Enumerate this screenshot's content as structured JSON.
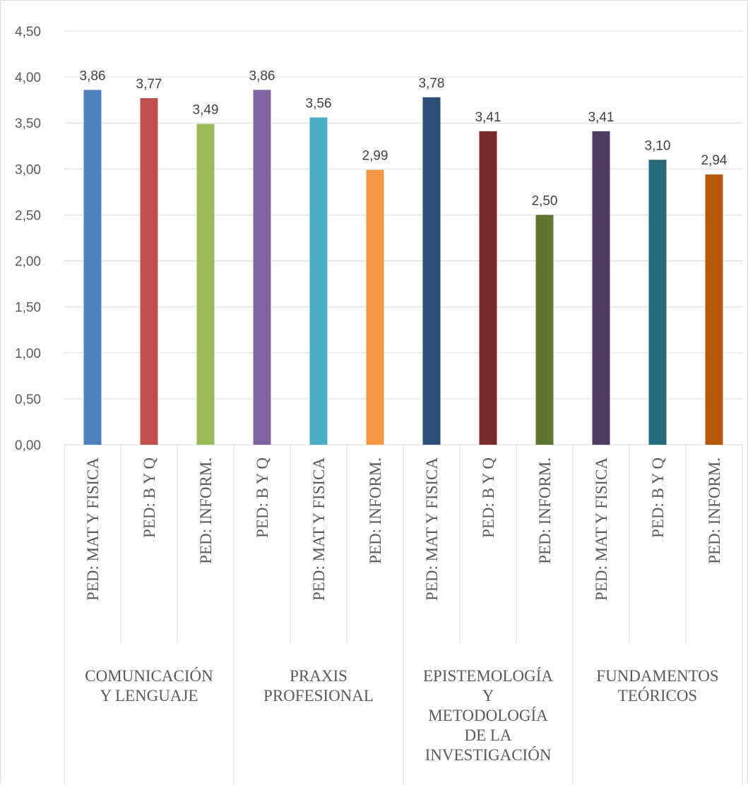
{
  "chart_data": {
    "type": "bar",
    "title": "",
    "xlabel": "",
    "ylabel": "",
    "ylim": [
      0,
      4.5
    ],
    "y_ticks": [
      "0,00",
      "0,50",
      "1,00",
      "1,50",
      "2,00",
      "2,50",
      "3,00",
      "3,50",
      "4,00",
      "4,50"
    ],
    "grid": true,
    "legend": "none",
    "groups": [
      {
        "label_lines": [
          "COMUNICACIÓN",
          "Y LENGUAJE"
        ],
        "bars": [
          {
            "category": "PED: MAT  Y FISICA",
            "value": 3.86,
            "label": "3,86",
            "color": "#4f81bd"
          },
          {
            "category": "PED: B Y Q",
            "value": 3.77,
            "label": "3,77",
            "color": "#c0504d"
          },
          {
            "category": "PED: INFORM.",
            "value": 3.49,
            "label": "3,49",
            "color": "#9bbb59"
          }
        ]
      },
      {
        "label_lines": [
          "PRAXIS",
          "PROFESIONAL"
        ],
        "bars": [
          {
            "category": "PED: B Y Q",
            "value": 3.86,
            "label": "3,86",
            "color": "#8064a2"
          },
          {
            "category": "PED: MAT  Y FISICA",
            "value": 3.56,
            "label": "3,56",
            "color": "#4bacc6"
          },
          {
            "category": "PED: INFORM.",
            "value": 2.99,
            "label": "2,99",
            "color": "#f79646"
          }
        ]
      },
      {
        "label_lines": [
          "EPISTEMOLOGÍA",
          "Y",
          "METODOLOGÍA",
          "DE LA",
          "INVESTIGACIÓN"
        ],
        "bars": [
          {
            "category": "PED: MAT  Y FISICA",
            "value": 3.78,
            "label": "3,78",
            "color": "#2c4d75"
          },
          {
            "category": "PED: B Y Q",
            "value": 3.41,
            "label": "3,41",
            "color": "#772c2a"
          },
          {
            "category": "PED: INFORM.",
            "value": 2.5,
            "label": "2,50",
            "color": "#5f7530"
          }
        ]
      },
      {
        "label_lines": [
          "FUNDAMENTOS",
          "TEÓRICOS"
        ],
        "bars": [
          {
            "category": "PED: MAT  Y FISICA",
            "value": 3.41,
            "label": "3,41",
            "color": "#4d3b62"
          },
          {
            "category": "PED: B Y Q",
            "value": 3.1,
            "label": "3,10",
            "color": "#276a7c"
          },
          {
            "category": "PED: INFORM.",
            "value": 2.94,
            "label": "2,94",
            "color": "#b65708"
          }
        ]
      }
    ],
    "colors": {
      "grid": "#d9d9d9",
      "axis_text": "#595959",
      "label_text": "#404040"
    }
  }
}
